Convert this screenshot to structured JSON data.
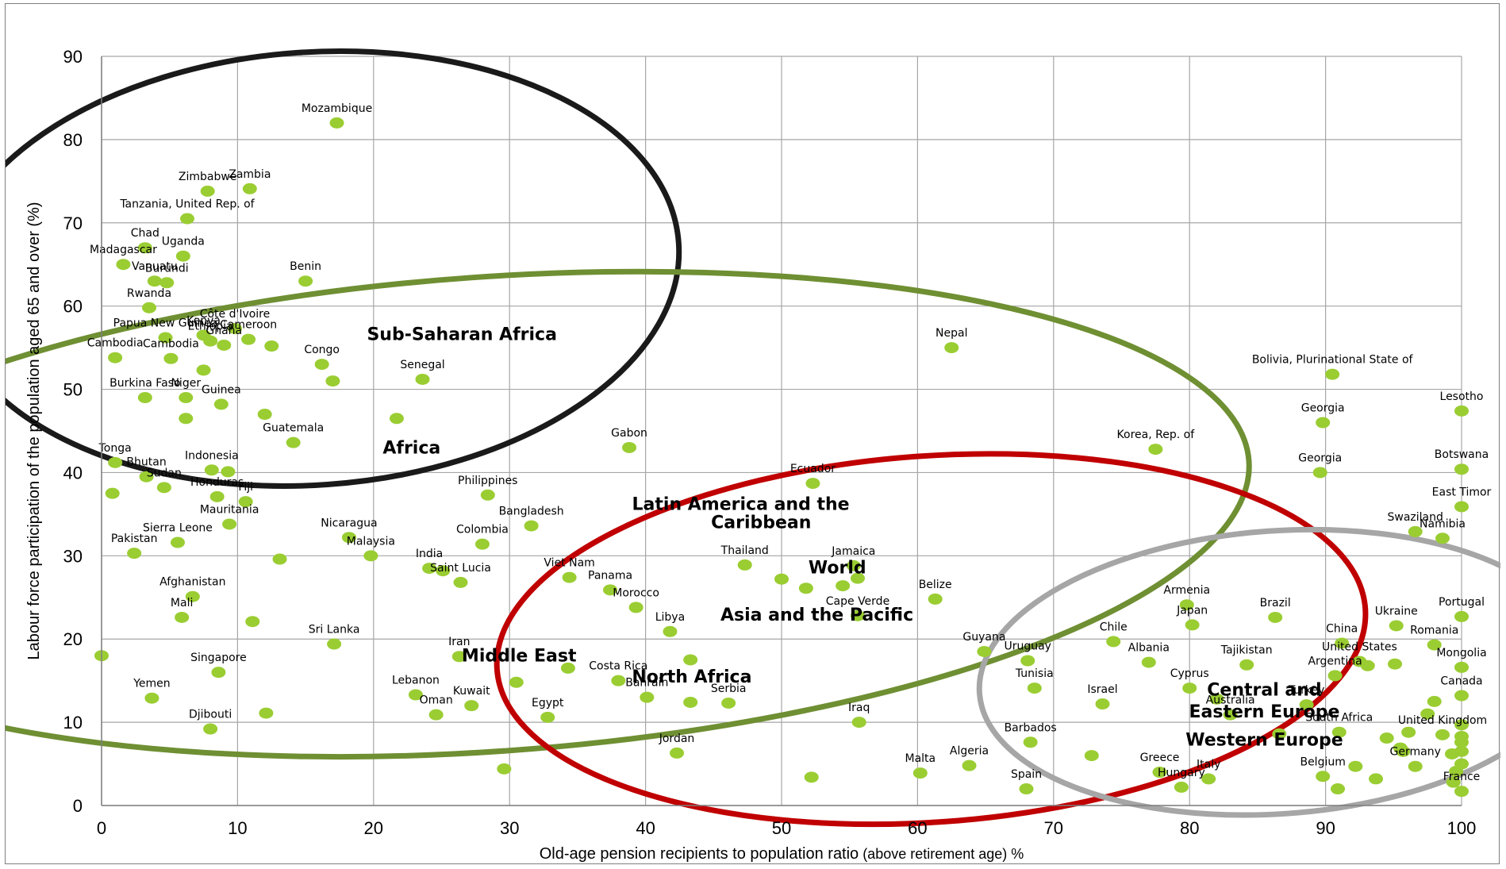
{
  "chart_data": {
    "type": "scatter",
    "xlabel": "Old-age pension recipients to population ratio",
    "xlabel_suffix": " (above retirement age) %",
    "ylabel": "Labour force participation of the population aged 65 and over (%)",
    "xlim": [
      0,
      100
    ],
    "ylim": [
      0,
      90
    ],
    "x_ticks": [
      "0",
      "10",
      "20",
      "30",
      "40",
      "50",
      "60",
      "70",
      "80",
      "90",
      "100"
    ],
    "y_ticks": [
      "0",
      "10",
      "20",
      "30",
      "40",
      "50",
      "60",
      "70",
      "80",
      "90"
    ],
    "grid": true,
    "point_color": "#9ACD32",
    "points": [
      {
        "x": 17.3,
        "y": 82.0,
        "label": "Mozambique"
      },
      {
        "x": 7.8,
        "y": 73.8,
        "label": "Zimbabwe"
      },
      {
        "x": 10.9,
        "y": 74.1,
        "label": "Zambia"
      },
      {
        "x": 6.3,
        "y": 70.5,
        "label": "Tanzania, United Rep. of"
      },
      {
        "x": 3.2,
        "y": 67.0,
        "label": "Chad"
      },
      {
        "x": 6.0,
        "y": 66.0,
        "label": "Uganda"
      },
      {
        "x": 1.6,
        "y": 65.0,
        "label": "Madagascar"
      },
      {
        "x": 4.8,
        "y": 62.8,
        "label": "Burundi"
      },
      {
        "x": 3.9,
        "y": 63.0,
        "label": "Vanuatu"
      },
      {
        "x": 15.0,
        "y": 63.0,
        "label": "Benin"
      },
      {
        "x": 3.5,
        "y": 59.8,
        "label": "Rwanda"
      },
      {
        "x": 9.8,
        "y": 57.3,
        "label": "Côte d'Ivoire"
      },
      {
        "x": 7.5,
        "y": 56.5,
        "label": "Kenya"
      },
      {
        "x": 4.7,
        "y": 56.2,
        "label": "Papua New Guinea"
      },
      {
        "x": 8.0,
        "y": 55.8,
        "label": "Ethiopia"
      },
      {
        "x": 9.0,
        "y": 55.3,
        "label": "Ghana"
      },
      {
        "x": 10.8,
        "y": 56.0,
        "label": "Cameroon"
      },
      {
        "x": 12.5,
        "y": 55.2,
        "label": ""
      },
      {
        "x": 1.0,
        "y": 53.8,
        "label": "Cambodia"
      },
      {
        "x": 5.1,
        "y": 53.7,
        "label": "Cambodia"
      },
      {
        "x": 7.5,
        "y": 52.3,
        "label": ""
      },
      {
        "x": 16.2,
        "y": 53.0,
        "label": "Congo"
      },
      {
        "x": 17.0,
        "y": 51.0,
        "label": ""
      },
      {
        "x": 23.6,
        "y": 51.2,
        "label": "Senegal"
      },
      {
        "x": 3.2,
        "y": 49.0,
        "label": "Burkina Faso"
      },
      {
        "x": 6.2,
        "y": 49.0,
        "label": "Niger"
      },
      {
        "x": 8.8,
        "y": 48.2,
        "label": "Guinea"
      },
      {
        "x": 6.2,
        "y": 46.5,
        "label": ""
      },
      {
        "x": 12.0,
        "y": 47.0,
        "label": ""
      },
      {
        "x": 21.7,
        "y": 46.5,
        "label": ""
      },
      {
        "x": 14.1,
        "y": 43.6,
        "label": "Guatemala"
      },
      {
        "x": 1.0,
        "y": 41.2,
        "label": "Tonga"
      },
      {
        "x": 3.3,
        "y": 39.5,
        "label": "Bhutan"
      },
      {
        "x": 8.1,
        "y": 40.3,
        "label": "Indonesia"
      },
      {
        "x": 9.3,
        "y": 40.1,
        "label": ""
      },
      {
        "x": 4.6,
        "y": 38.2,
        "label": "Sudan"
      },
      {
        "x": 0.8,
        "y": 37.5,
        "label": ""
      },
      {
        "x": 8.5,
        "y": 37.1,
        "label": "Honduras"
      },
      {
        "x": 10.6,
        "y": 36.5,
        "label": "Fiji"
      },
      {
        "x": 9.4,
        "y": 33.8,
        "label": "Mauritania"
      },
      {
        "x": 28.4,
        "y": 37.3,
        "label": "Philippines"
      },
      {
        "x": 31.6,
        "y": 33.6,
        "label": "Bangladesh"
      },
      {
        "x": 38.8,
        "y": 43.0,
        "label": "Gabon"
      },
      {
        "x": 5.6,
        "y": 31.6,
        "label": "Sierra Leone"
      },
      {
        "x": 18.2,
        "y": 32.2,
        "label": "Nicaragua"
      },
      {
        "x": 19.8,
        "y": 30.0,
        "label": "Malaysia"
      },
      {
        "x": 28.0,
        "y": 31.4,
        "label": "Colombia"
      },
      {
        "x": 2.4,
        "y": 30.3,
        "label": "Pakistan"
      },
      {
        "x": 13.1,
        "y": 29.6,
        "label": ""
      },
      {
        "x": 24.1,
        "y": 28.5,
        "label": "India"
      },
      {
        "x": 25.1,
        "y": 28.2,
        "label": ""
      },
      {
        "x": 26.4,
        "y": 26.8,
        "label": "Saint Lucia"
      },
      {
        "x": 34.4,
        "y": 27.4,
        "label": "Viet Nam"
      },
      {
        "x": 37.4,
        "y": 25.9,
        "label": "Panama"
      },
      {
        "x": 39.3,
        "y": 23.8,
        "label": "Morocco"
      },
      {
        "x": 6.7,
        "y": 25.1,
        "label": "Afghanistan"
      },
      {
        "x": 5.9,
        "y": 22.6,
        "label": "Mali"
      },
      {
        "x": 11.1,
        "y": 22.1,
        "label": ""
      },
      {
        "x": 17.1,
        "y": 19.4,
        "label": "Sri Lanka"
      },
      {
        "x": 0.0,
        "y": 18.0,
        "label": ""
      },
      {
        "x": 8.6,
        "y": 16.0,
        "label": "Singapore"
      },
      {
        "x": 26.3,
        "y": 17.9,
        "label": "Iran"
      },
      {
        "x": 34.3,
        "y": 16.5,
        "label": ""
      },
      {
        "x": 38.0,
        "y": 15.0,
        "label": "Costa Rica"
      },
      {
        "x": 41.8,
        "y": 20.9,
        "label": "Libya"
      },
      {
        "x": 43.3,
        "y": 17.5,
        "label": ""
      },
      {
        "x": 3.7,
        "y": 12.9,
        "label": "Yemen"
      },
      {
        "x": 12.1,
        "y": 11.1,
        "label": ""
      },
      {
        "x": 8.0,
        "y": 9.2,
        "label": "Djibouti"
      },
      {
        "x": 23.1,
        "y": 13.3,
        "label": "Lebanon"
      },
      {
        "x": 24.6,
        "y": 10.9,
        "label": "Oman"
      },
      {
        "x": 27.2,
        "y": 12.0,
        "label": "Kuwait"
      },
      {
        "x": 30.5,
        "y": 14.8,
        "label": ""
      },
      {
        "x": 32.8,
        "y": 10.6,
        "label": "Egypt"
      },
      {
        "x": 40.1,
        "y": 13.0,
        "label": "Bahrain"
      },
      {
        "x": 43.3,
        "y": 12.4,
        "label": ""
      },
      {
        "x": 46.1,
        "y": 12.3,
        "label": "Serbia"
      },
      {
        "x": 42.3,
        "y": 6.3,
        "label": "Jordan"
      },
      {
        "x": 29.6,
        "y": 4.4,
        "label": ""
      },
      {
        "x": 52.3,
        "y": 38.7,
        "label": "Ecuador"
      },
      {
        "x": 47.3,
        "y": 28.9,
        "label": "Thailand"
      },
      {
        "x": 50.0,
        "y": 27.2,
        "label": ""
      },
      {
        "x": 51.8,
        "y": 26.1,
        "label": ""
      },
      {
        "x": 55.3,
        "y": 28.8,
        "label": "Jamaica"
      },
      {
        "x": 54.5,
        "y": 26.4,
        "label": ""
      },
      {
        "x": 55.6,
        "y": 27.3,
        "label": "World"
      },
      {
        "x": 55.6,
        "y": 22.8,
        "label": "Cape Verde"
      },
      {
        "x": 61.3,
        "y": 24.8,
        "label": "Belize"
      },
      {
        "x": 62.5,
        "y": 55.0,
        "label": "Nepal"
      },
      {
        "x": 64.9,
        "y": 18.5,
        "label": "Guyana"
      },
      {
        "x": 68.1,
        "y": 17.4,
        "label": "Uruguay"
      },
      {
        "x": 68.6,
        "y": 14.1,
        "label": "Tunisia"
      },
      {
        "x": 55.7,
        "y": 10.0,
        "label": "Iraq"
      },
      {
        "x": 52.2,
        "y": 3.4,
        "label": ""
      },
      {
        "x": 60.2,
        "y": 3.9,
        "label": "Malta"
      },
      {
        "x": 63.8,
        "y": 4.8,
        "label": "Algeria"
      },
      {
        "x": 68.3,
        "y": 7.6,
        "label": "Barbados"
      },
      {
        "x": 68.0,
        "y": 2.0,
        "label": "Spain"
      },
      {
        "x": 72.8,
        "y": 6.0,
        "label": ""
      },
      {
        "x": 77.5,
        "y": 42.8,
        "label": "Korea, Rep. of"
      },
      {
        "x": 74.4,
        "y": 19.7,
        "label": "Chile"
      },
      {
        "x": 77.0,
        "y": 17.2,
        "label": "Albania"
      },
      {
        "x": 73.6,
        "y": 12.2,
        "label": "Israel"
      },
      {
        "x": 79.8,
        "y": 24.1,
        "label": "Armenia"
      },
      {
        "x": 80.2,
        "y": 21.7,
        "label": "Japan"
      },
      {
        "x": 84.2,
        "y": 16.9,
        "label": "Tajikistan"
      },
      {
        "x": 80.0,
        "y": 14.1,
        "label": "Cyprus"
      },
      {
        "x": 82.0,
        "y": 12.8,
        "label": ""
      },
      {
        "x": 83.0,
        "y": 10.9,
        "label": "Australia"
      },
      {
        "x": 77.8,
        "y": 4.0,
        "label": "Greece"
      },
      {
        "x": 79.4,
        "y": 2.2,
        "label": "Hungary"
      },
      {
        "x": 81.4,
        "y": 3.2,
        "label": "Italy"
      },
      {
        "x": 86.3,
        "y": 22.6,
        "label": "Brazil"
      },
      {
        "x": 90.5,
        "y": 51.8,
        "label": "Bolivia, Plurinational State of"
      },
      {
        "x": 89.8,
        "y": 46.0,
        "label": "Georgia"
      },
      {
        "x": 89.6,
        "y": 40.0,
        "label": "Georgia"
      },
      {
        "x": 91.2,
        "y": 19.5,
        "label": "China"
      },
      {
        "x": 92.5,
        "y": 17.3,
        "label": "United States"
      },
      {
        "x": 93.1,
        "y": 16.8,
        "label": ""
      },
      {
        "x": 90.7,
        "y": 15.6,
        "label": "Argentina"
      },
      {
        "x": 88.6,
        "y": 12.1,
        "label": "Turkey"
      },
      {
        "x": 95.2,
        "y": 21.6,
        "label": "Ukraine"
      },
      {
        "x": 98.0,
        "y": 19.3,
        "label": "Romania"
      },
      {
        "x": 95.1,
        "y": 17.0,
        "label": ""
      },
      {
        "x": 86.6,
        "y": 8.6,
        "label": ""
      },
      {
        "x": 91.0,
        "y": 8.8,
        "label": "South Africa"
      },
      {
        "x": 94.5,
        "y": 8.1,
        "label": ""
      },
      {
        "x": 96.6,
        "y": 32.9,
        "label": "Swaziland"
      },
      {
        "x": 98.6,
        "y": 32.1,
        "label": "Namibia"
      },
      {
        "x": 100.0,
        "y": 47.4,
        "label": "Lesotho"
      },
      {
        "x": 100.0,
        "y": 40.4,
        "label": "Botswana"
      },
      {
        "x": 100.0,
        "y": 35.9,
        "label": "East Timor"
      },
      {
        "x": 100.0,
        "y": 22.7,
        "label": "Portugal"
      },
      {
        "x": 100.0,
        "y": 16.6,
        "label": "Mongolia"
      },
      {
        "x": 100.0,
        "y": 13.2,
        "label": "Canada"
      },
      {
        "x": 98.0,
        "y": 12.5,
        "label": ""
      },
      {
        "x": 97.5,
        "y": 11.0,
        "label": ""
      },
      {
        "x": 98.6,
        "y": 8.5,
        "label": "United Kingdom"
      },
      {
        "x": 100.0,
        "y": 9.7,
        "label": ""
      },
      {
        "x": 100.0,
        "y": 8.3,
        "label": ""
      },
      {
        "x": 100.0,
        "y": 7.6,
        "label": ""
      },
      {
        "x": 100.0,
        "y": 6.5,
        "label": ""
      },
      {
        "x": 99.3,
        "y": 6.2,
        "label": ""
      },
      {
        "x": 100.0,
        "y": 5.0,
        "label": ""
      },
      {
        "x": 96.1,
        "y": 8.8,
        "label": ""
      },
      {
        "x": 95.5,
        "y": 6.9,
        "label": ""
      },
      {
        "x": 95.7,
        "y": 6.5,
        "label": ""
      },
      {
        "x": 96.6,
        "y": 4.7,
        "label": "Germany"
      },
      {
        "x": 99.6,
        "y": 4.1,
        "label": ""
      },
      {
        "x": 92.2,
        "y": 4.7,
        "label": ""
      },
      {
        "x": 93.7,
        "y": 3.2,
        "label": ""
      },
      {
        "x": 89.8,
        "y": 3.5,
        "label": "Belgium"
      },
      {
        "x": 90.9,
        "y": 2.0,
        "label": ""
      },
      {
        "x": 99.4,
        "y": 2.8,
        "label": ""
      },
      {
        "x": 100.0,
        "y": 1.7,
        "label": "France"
      }
    ],
    "regions": [
      {
        "label": "Sub-Saharan Africa",
        "color": "#1a1a1a",
        "cx": 15.5,
        "cy": 64.5,
        "rx": 27.0,
        "ry": 26.0
      },
      {
        "label": "Africa",
        "color": "#6f8f33",
        "cx": 28.5,
        "cy": 35.0,
        "rx": 56.0,
        "ry": 28.5
      },
      {
        "label": "Latin America and the Caribbean",
        "color": "#6f8f33",
        "cx": 0,
        "cy": 0,
        "rx": 0,
        "ry": 0
      },
      {
        "label": "Middle East",
        "color": "#6f8f33",
        "cx": 0,
        "cy": 0,
        "rx": 0,
        "ry": 0
      },
      {
        "label": "North Africa",
        "color": "#6f8f33",
        "cx": 0,
        "cy": 0,
        "rx": 0,
        "ry": 0
      },
      {
        "label": "Asia and the Pacific",
        "color": "#c00000",
        "cx": 61.0,
        "cy": 20.0,
        "rx": 32.0,
        "ry": 22.0
      },
      {
        "label": "Central and Eastern Europe",
        "color": "#a6a6a6",
        "cx": 86.5,
        "cy": 16.0,
        "rx": 22.0,
        "ry": 17.0
      },
      {
        "label": "Western Europe",
        "color": "#a6a6a6",
        "cx": 0,
        "cy": 0,
        "rx": 0,
        "ry": 0
      }
    ],
    "region_labels": [
      {
        "text": "Sub-Saharan Africa",
        "x": 26.5,
        "y": 55.9
      },
      {
        "text": "Africa",
        "x": 22.8,
        "y": 42.3
      },
      {
        "text": "Latin America and the",
        "x": 47.0,
        "y": 35.5
      },
      {
        "text": "Caribbean",
        "x": 48.5,
        "y": 33.3
      },
      {
        "text": "World",
        "x": 54.1,
        "y": 27.9,
        "color": "#c00000"
      },
      {
        "text": "Asia and the Pacific",
        "x": 52.6,
        "y": 22.2
      },
      {
        "text": "Middle East",
        "x": 30.7,
        "y": 17.3
      },
      {
        "text": "North Africa",
        "x": 43.4,
        "y": 14.8
      },
      {
        "text": "Central and",
        "x": 85.5,
        "y": 13.2
      },
      {
        "text": "Eastern Europe",
        "x": 85.5,
        "y": 10.6
      },
      {
        "text": "Western Europe",
        "x": 85.5,
        "y": 7.2
      }
    ]
  }
}
